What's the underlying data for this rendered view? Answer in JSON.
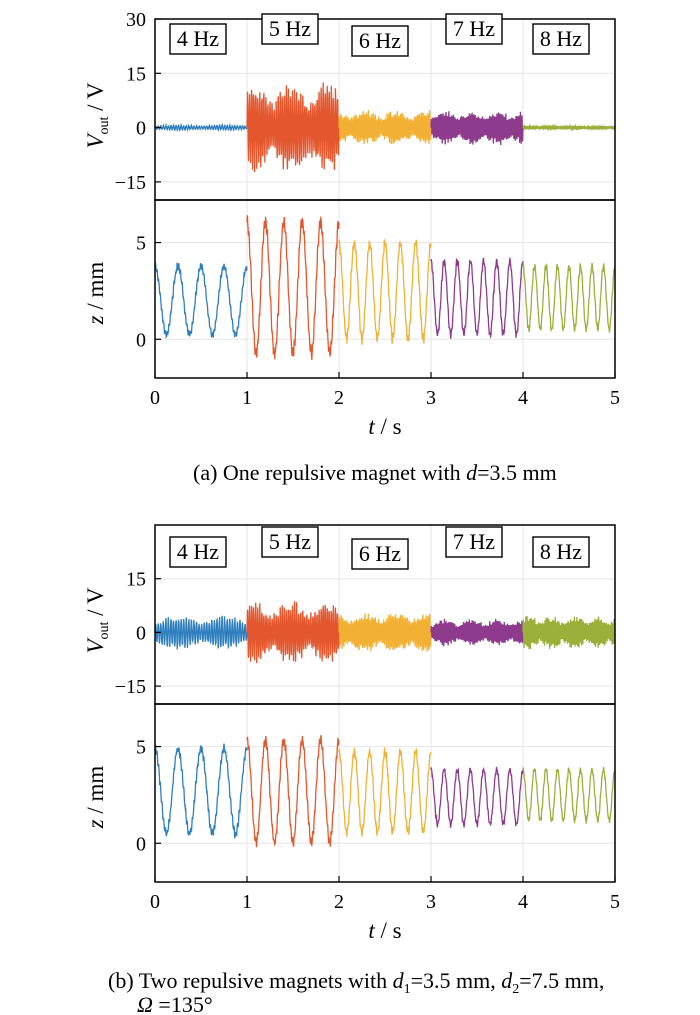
{
  "colors": {
    "4 Hz": "#2f7fbf",
    "5 Hz": "#e4572e",
    "6 Hz": "#f2b134",
    "7 Hz": "#8e3b8e",
    "8 Hz": "#9bb03a"
  },
  "chart_data": [
    {
      "panel": "a",
      "type": "line",
      "caption": {
        "prefix": "(a) One repulsive magnet with ",
        "var": "d",
        "suffix": "=3.5 mm"
      },
      "xlabel": {
        "var": "t",
        "unit": " / s"
      },
      "xlim": [
        0,
        5
      ],
      "xticks": [
        "0",
        "1",
        "2",
        "3",
        "4",
        "5"
      ],
      "frequency_labels": [
        "4 Hz",
        "5 Hz",
        "6 Hz",
        "7 Hz",
        "8 Hz"
      ],
      "voltage": {
        "ylabel": {
          "var": "V",
          "sub": "out",
          "unit": " / V"
        },
        "ylim": [
          -20,
          30
        ],
        "yticks": [
          "30",
          "15",
          "0",
          "−15"
        ],
        "series": [
          {
            "name": "4 Hz",
            "t": [
              0,
              1
            ],
            "amplitude": 0.8,
            "offset": 0
          },
          {
            "name": "5 Hz",
            "t": [
              1,
              2
            ],
            "amplitude": 13,
            "offset": 0
          },
          {
            "name": "6 Hz",
            "t": [
              2,
              3
            ],
            "amplitude": 5,
            "offset": 0
          },
          {
            "name": "7 Hz",
            "t": [
              3,
              4
            ],
            "amplitude": 5,
            "offset": 0
          },
          {
            "name": "8 Hz",
            "t": [
              4,
              5
            ],
            "amplitude": 0.5,
            "offset": 0
          }
        ]
      },
      "displacement": {
        "ylabel": {
          "var": "z",
          "unit": " / mm"
        },
        "ylim": [
          -2,
          7.2
        ],
        "yticks": [
          "5",
          "0"
        ],
        "series": [
          {
            "name": "4 Hz",
            "t": [
              0,
              1
            ],
            "min": 0.0,
            "max": 4.0
          },
          {
            "name": "5 Hz",
            "t": [
              1,
              2
            ],
            "min": -1.2,
            "max": 6.5
          },
          {
            "name": "6 Hz",
            "t": [
              2,
              3
            ],
            "min": -0.3,
            "max": 5.3
          },
          {
            "name": "7 Hz",
            "t": [
              3,
              4
            ],
            "min": 0.0,
            "max": 4.3
          },
          {
            "name": "8 Hz",
            "t": [
              4,
              5
            ],
            "min": 0.3,
            "max": 4.0
          }
        ]
      }
    },
    {
      "panel": "b",
      "type": "line",
      "caption": {
        "prefix": "(b) Two repulsive magnets with ",
        "var1": "d",
        "sub1": "1",
        "mid": "=3.5 mm, ",
        "var2": "d",
        "sub2": "2",
        "suffix": "=7.5 mm,",
        "line2_var": "Ω",
        "line2_suffix": " =135°"
      },
      "xlabel": {
        "var": "t",
        "unit": " / s"
      },
      "xlim": [
        0,
        5
      ],
      "xticks": [
        "0",
        "1",
        "2",
        "3",
        "4",
        "5"
      ],
      "frequency_labels": [
        "4 Hz",
        "5 Hz",
        "6 Hz",
        "7 Hz",
        "8 Hz"
      ],
      "voltage": {
        "ylabel": {
          "var": "V",
          "sub": "out",
          "unit": " / V"
        },
        "ylim": [
          -20,
          30
        ],
        "yticks": [
          "15",
          "0",
          "−15"
        ],
        "series": [
          {
            "name": "4 Hz",
            "t": [
              0,
              1
            ],
            "amplitude": 5,
            "offset": 0
          },
          {
            "name": "5 Hz",
            "t": [
              1,
              2
            ],
            "amplitude": 9,
            "offset": 0
          },
          {
            "name": "6 Hz",
            "t": [
              2,
              3
            ],
            "amplitude": 6,
            "offset": 0
          },
          {
            "name": "7 Hz",
            "t": [
              3,
              4
            ],
            "amplitude": 4,
            "offset": 0
          },
          {
            "name": "8 Hz",
            "t": [
              4,
              5
            ],
            "amplitude": 5,
            "offset": 0
          }
        ]
      },
      "displacement": {
        "ylabel": {
          "var": "z",
          "unit": " / mm"
        },
        "ylim": [
          -2,
          7.2
        ],
        "yticks": [
          "5",
          "0"
        ],
        "series": [
          {
            "name": "4 Hz",
            "t": [
              0,
              1
            ],
            "min": 0.2,
            "max": 5.2
          },
          {
            "name": "5 Hz",
            "t": [
              1,
              2
            ],
            "min": -0.3,
            "max": 5.7
          },
          {
            "name": "6 Hz",
            "t": [
              2,
              3
            ],
            "min": 0.3,
            "max": 5.0
          },
          {
            "name": "7 Hz",
            "t": [
              3,
              4
            ],
            "min": 0.8,
            "max": 4.0
          },
          {
            "name": "8 Hz",
            "t": [
              4,
              5
            ],
            "min": 1.0,
            "max": 4.0
          }
        ]
      }
    }
  ]
}
